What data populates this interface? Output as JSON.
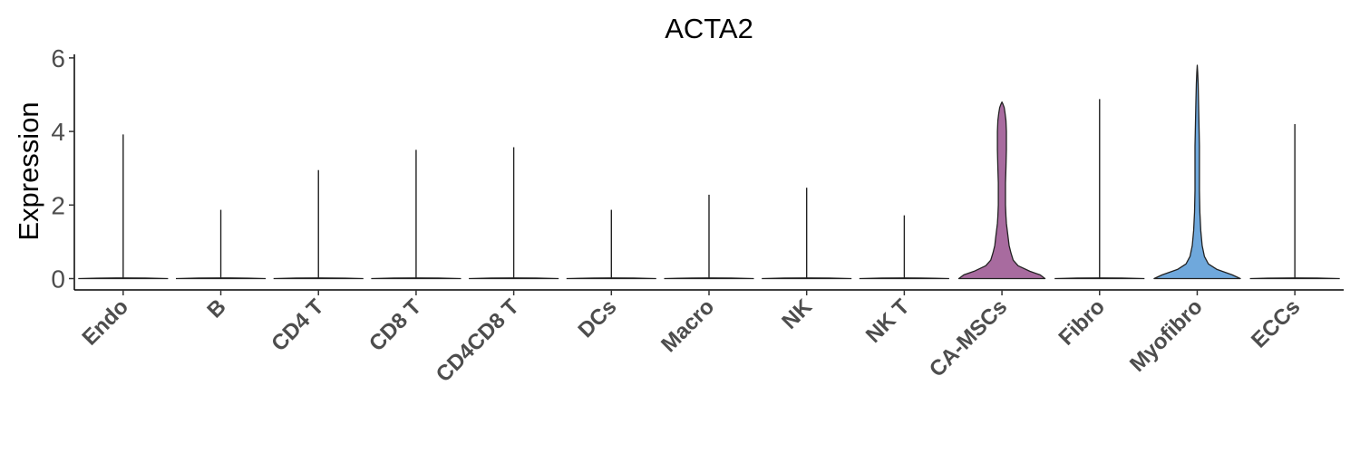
{
  "chart_data": {
    "type": "violin",
    "title": "ACTA2",
    "xlabel": "",
    "ylabel": "Expression",
    "ylim": [
      0,
      6
    ],
    "yticks": [
      "0",
      "2",
      "4",
      "6"
    ],
    "grid": false,
    "legend": "none",
    "categories": [
      "Endo",
      "B",
      "CD4 T",
      "CD8 T",
      "CD4CD8 T",
      "DCs",
      "Macro",
      "NK",
      "NK T",
      "CA-MSCs",
      "Fibro",
      "Myofibro",
      "ECCs"
    ],
    "max_values": [
      3.92,
      1.87,
      2.95,
      3.5,
      3.57,
      1.87,
      2.28,
      2.47,
      1.72,
      4.8,
      4.88,
      5.8,
      4.2
    ],
    "colors": [
      "#ffffff",
      "#ffffff",
      "#ffffff",
      "#ffffff",
      "#ffffff",
      "#ffffff",
      "#ffffff",
      "#ffffff",
      "#ffffff",
      "#a86b9f",
      "#ffffff",
      "#6fa8dc",
      "#ffffff"
    ],
    "density_profiles": {
      "CA-MSCs": {
        "y": [
          0,
          0.1,
          0.2,
          0.35,
          0.5,
          0.7,
          0.9,
          1.1,
          1.3,
          1.5,
          1.7,
          2.0,
          2.3,
          2.6,
          3.0,
          3.5,
          4.0,
          4.3,
          4.5,
          4.65,
          4.75,
          4.8
        ],
        "w": [
          0.96,
          0.85,
          0.62,
          0.36,
          0.25,
          0.2,
          0.16,
          0.14,
          0.12,
          0.1,
          0.09,
          0.08,
          0.08,
          0.08,
          0.09,
          0.1,
          0.1,
          0.09,
          0.07,
          0.05,
          0.02,
          0
        ]
      },
      "Myofibro": {
        "y": [
          0,
          0.1,
          0.25,
          0.4,
          0.6,
          0.9,
          1.3,
          1.8,
          2.4,
          3.0,
          3.6,
          4.2,
          4.8,
          5.3,
          5.6,
          5.8
        ],
        "w": [
          0.96,
          0.78,
          0.44,
          0.25,
          0.16,
          0.11,
          0.08,
          0.06,
          0.05,
          0.05,
          0.05,
          0.04,
          0.03,
          0.02,
          0.01,
          0
        ]
      }
    }
  }
}
